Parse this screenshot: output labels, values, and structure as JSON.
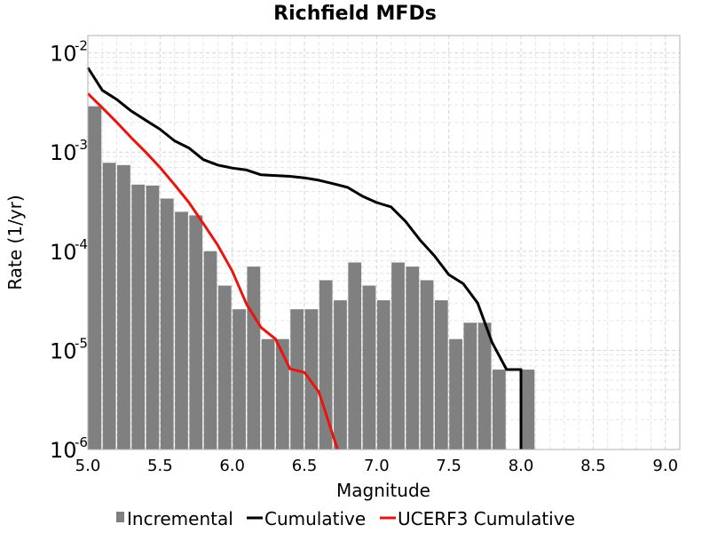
{
  "chart_data": {
    "type": "bar",
    "title": "Richfield MFDs",
    "xlabel": "Magnitude",
    "ylabel": "Rate (1/yr)",
    "xlim": [
      5.0,
      9.1
    ],
    "ylim": [
      1e-06,
      0.015
    ],
    "yscale": "log",
    "grid": true,
    "legend_position": "bottom",
    "x_ticks": [
      "5.0",
      "5.5",
      "6.0",
      "6.5",
      "7.0",
      "7.5",
      "8.0",
      "8.5",
      "9.0"
    ],
    "y_ticks": [
      {
        "value": 1e-06,
        "base": "10",
        "exp": "-6"
      },
      {
        "value": 1e-05,
        "base": "10",
        "exp": "-5"
      },
      {
        "value": 0.0001,
        "base": "10",
        "exp": "-4"
      },
      {
        "value": 0.001,
        "base": "10",
        "exp": "-3"
      },
      {
        "value": 0.01,
        "base": "10",
        "exp": "-2"
      }
    ],
    "series": [
      {
        "name": "Incremental",
        "kind": "bar",
        "color": "#808080",
        "bin_width": 0.1,
        "x": [
          5.0,
          5.1,
          5.2,
          5.3,
          5.4,
          5.5,
          5.6,
          5.7,
          5.8,
          5.9,
          6.0,
          6.1,
          6.2,
          6.3,
          6.4,
          6.5,
          6.6,
          6.7,
          6.8,
          6.9,
          7.0,
          7.1,
          7.2,
          7.3,
          7.4,
          7.5,
          7.6,
          7.7,
          7.8,
          7.9,
          8.0
        ],
        "values": [
          0.0029,
          0.00078,
          0.00074,
          0.00047,
          0.00046,
          0.00034,
          0.00025,
          0.00023,
          0.0001,
          4.5e-05,
          2.6e-05,
          7e-05,
          1.3e-05,
          1.3e-05,
          2.6e-05,
          2.6e-05,
          5.1e-05,
          3.2e-05,
          7.7e-05,
          4.5e-05,
          3.2e-05,
          7.7e-05,
          7e-05,
          5.1e-05,
          3.2e-05,
          1.3e-05,
          1.9e-05,
          1.9e-05,
          6.4e-06,
          0,
          6.4e-06
        ]
      },
      {
        "name": "Cumulative",
        "kind": "line",
        "color": "#000000",
        "x": [
          5.0,
          5.1,
          5.2,
          5.3,
          5.4,
          5.5,
          5.6,
          5.7,
          5.8,
          5.9,
          6.0,
          6.1,
          6.2,
          6.3,
          6.4,
          6.5,
          6.6,
          6.7,
          6.8,
          6.9,
          7.0,
          7.1,
          7.2,
          7.3,
          7.4,
          7.5,
          7.6,
          7.7,
          7.8,
          7.9,
          8.0,
          8.0
        ],
        "values": [
          0.0071,
          0.0042,
          0.0034,
          0.0026,
          0.0021,
          0.0017,
          0.0013,
          0.0011,
          0.00084,
          0.00074,
          0.00069,
          0.00066,
          0.00059,
          0.00058,
          0.00057,
          0.00055,
          0.00052,
          0.00048,
          0.00044,
          0.00036,
          0.00031,
          0.00028,
          0.0002,
          0.00013,
          9e-05,
          5.8e-05,
          4.7e-05,
          3e-05,
          1.2e-05,
          6.4e-06,
          6.4e-06,
          1e-06
        ]
      },
      {
        "name": "UCERF3 Cumulative",
        "kind": "line",
        "color": "#e8150f",
        "x": [
          5.0,
          5.1,
          5.2,
          5.3,
          5.4,
          5.5,
          5.6,
          5.7,
          5.8,
          5.9,
          6.0,
          6.1,
          6.2,
          6.3,
          6.4,
          6.5,
          6.6,
          6.73
        ],
        "values": [
          0.0039,
          0.0028,
          0.002,
          0.0014,
          0.001,
          0.0007,
          0.00047,
          0.00031,
          0.00019,
          0.000115,
          6.3e-05,
          2.9e-05,
          1.7e-05,
          1.3e-05,
          6.5e-06,
          6e-06,
          3.8e-06,
          1e-06
        ]
      }
    ]
  }
}
